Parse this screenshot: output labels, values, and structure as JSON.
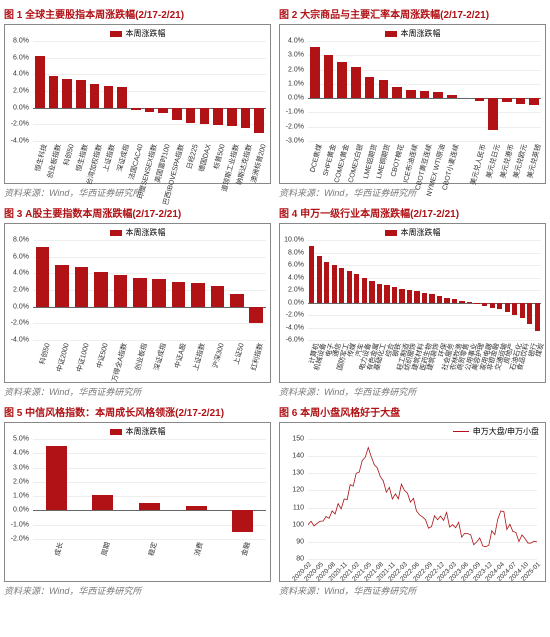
{
  "source_text": "资料来源：Wind，华西证券研究所",
  "colors": {
    "primary": "#b01216",
    "secondary": "#2b2b2b",
    "grid": "#eeeeee",
    "axis": "#666666",
    "text": "#333333"
  },
  "charts": {
    "c1": {
      "title": "图 1  全球主要股指本周涨跌幅(2/17-2/21)",
      "type": "bar",
      "legend": [
        "本周涨跌幅"
      ],
      "legend_colors": [
        "#b01216"
      ],
      "ylim": [
        -4,
        8
      ],
      "ytick_step": 2,
      "ysuffix": ".0%",
      "categories": [
        "恒生科技",
        "创业板指数",
        "科创50",
        "恒生指数",
        "台湾加权指数",
        "上证指数",
        "深证成指",
        "法国CAC40",
        "印度SENSEX指数",
        "英国富时100",
        "巴西IBOVESPA指数",
        "日经225",
        "德国DAX",
        "标普500",
        "道琼斯工业指数",
        "纳斯达克指数",
        "澳洲标普200"
      ],
      "values": [
        6.2,
        3.8,
        3.5,
        3.3,
        2.8,
        2.6,
        2.5,
        -0.3,
        -0.5,
        -0.6,
        -1.5,
        -1.8,
        -2.0,
        -2.1,
        -2.2,
        -2.5,
        -3.0
      ],
      "bar_color": "#b01216"
    },
    "c2": {
      "title": "图 2  大宗商品与主要汇率本周涨跌幅(2/17-2/21)",
      "type": "bar",
      "legend": [
        "本周涨跌幅"
      ],
      "legend_colors": [
        "#b01216"
      ],
      "ylim": [
        -3,
        4
      ],
      "ytick_step": 1,
      "ysuffix": ".0%",
      "categories": [
        "DCE焦煤",
        "SHFE黄金",
        "COMEX黄金",
        "COMEX白银",
        "LME铝期货",
        "LME铜期货",
        "CBOT棉花",
        "ICE布油连续",
        "CBOT黄豆连续",
        "NYMEX WTI原油",
        "CBOT小麦连续",
        "",
        "美元兑人民币",
        "美元兑日元",
        "美元兑港币",
        "美元兑欧元",
        "美元兑英镑"
      ],
      "values": [
        3.6,
        3.0,
        2.5,
        2.2,
        1.5,
        1.3,
        0.8,
        0.6,
        0.5,
        0.4,
        0.2,
        0,
        -0.2,
        -2.2,
        -0.3,
        -0.4,
        -0.5
      ],
      "bar_color": "#b01216"
    },
    "c3": {
      "title": "图 3  A股主要指数本周涨跌幅(2/17-2/21)",
      "type": "bar",
      "legend": [
        "本周涨跌幅"
      ],
      "legend_colors": [
        "#b01216"
      ],
      "ylim": [
        -4,
        8
      ],
      "ytick_step": 2,
      "ysuffix": ".0%",
      "categories": [
        "科创50",
        "中证2000",
        "中证1000",
        "中证500",
        "万得全A指数",
        "创业板指",
        "深证成指",
        "中证A股",
        "上证指数",
        "沪深300",
        "上证50",
        "红利指数"
      ],
      "values": [
        7.2,
        5.0,
        4.8,
        4.2,
        3.8,
        3.5,
        3.3,
        3.0,
        2.8,
        2.5,
        1.5,
        -2.0
      ],
      "bar_color": "#b01216"
    },
    "c4": {
      "title": "图 4  申万一级行业本周涨跌幅(2/17-2/21)",
      "type": "bar",
      "legend": [
        "本周涨跌幅"
      ],
      "legend_colors": [
        "#b01216"
      ],
      "ylim": [
        -6,
        10
      ],
      "ytick_step": 2,
      "ysuffix": ".0%",
      "categories": [
        "计算机",
        "机械设备",
        "电子",
        "通信",
        "国防军工",
        "传媒",
        "汽车",
        "电力设备",
        "有色金属",
        "基础化工",
        "综合",
        "钢铁",
        "轻工制造",
        "纺织服饰",
        "建筑材料",
        "医药生物",
        "建筑装饰",
        "环保",
        "社会服务",
        "农林牧渔",
        "商贸零售",
        "公用事业",
        "美容护理",
        "家用电器",
        "非银金融",
        "交通运输",
        "房地产",
        "石油石化",
        "食品饮料",
        "银行",
        "煤炭"
      ],
      "values": [
        9.0,
        7.5,
        6.5,
        6.0,
        5.5,
        5.0,
        4.5,
        4.0,
        3.5,
        3.0,
        2.8,
        2.5,
        2.2,
        2.0,
        1.8,
        1.5,
        1.3,
        1.0,
        0.8,
        0.5,
        0.3,
        0.1,
        -0.2,
        -0.5,
        -0.8,
        -1.0,
        -1.5,
        -2.0,
        -2.5,
        -3.5,
        -4.5
      ],
      "bar_color": "#b01216"
    },
    "c5": {
      "title": "图 5  中信风格指数：本周成长风格领涨(2/17-2/21)",
      "type": "bar",
      "legend": [
        "本周涨跌幅"
      ],
      "legend_colors": [
        "#b01216"
      ],
      "ylim": [
        -2,
        5
      ],
      "ytick_step": 1,
      "ysuffix": ".0%",
      "categories": [
        "成长",
        "周期",
        "稳定",
        "消费",
        "金融"
      ],
      "values": [
        4.5,
        1.1,
        0.5,
        0.3,
        -1.5
      ],
      "bar_color": "#b01216",
      "bar_width_ratio": 0.45
    },
    "c6": {
      "title": "图 6  本周小盘风格好于大盘",
      "type": "line",
      "legend": [
        "申万大盘/申万小盘"
      ],
      "legend_colors": [
        "#b01216"
      ],
      "ylim": [
        80,
        150
      ],
      "ytick_step": 10,
      "ysuffix": "",
      "x_labels": [
        "2020-02",
        "2020-05",
        "2020-08",
        "2020-11",
        "2021-02",
        "2021-05",
        "2021-08",
        "2021-11",
        "2022-03",
        "2022-06",
        "2022-09",
        "2022-12",
        "2023-03",
        "2023-06",
        "2023-09",
        "2023-12",
        "2024-04",
        "2024-07",
        "2024-10",
        "2025-01"
      ],
      "series": [
        {
          "color": "#b01216",
          "values": [
            100,
            102,
            108,
            115,
            130,
            145,
            128,
            115,
            120,
            108,
            98,
            105,
            100,
            95,
            90,
            88,
            108,
            96,
            92,
            90
          ]
        }
      ]
    }
  }
}
